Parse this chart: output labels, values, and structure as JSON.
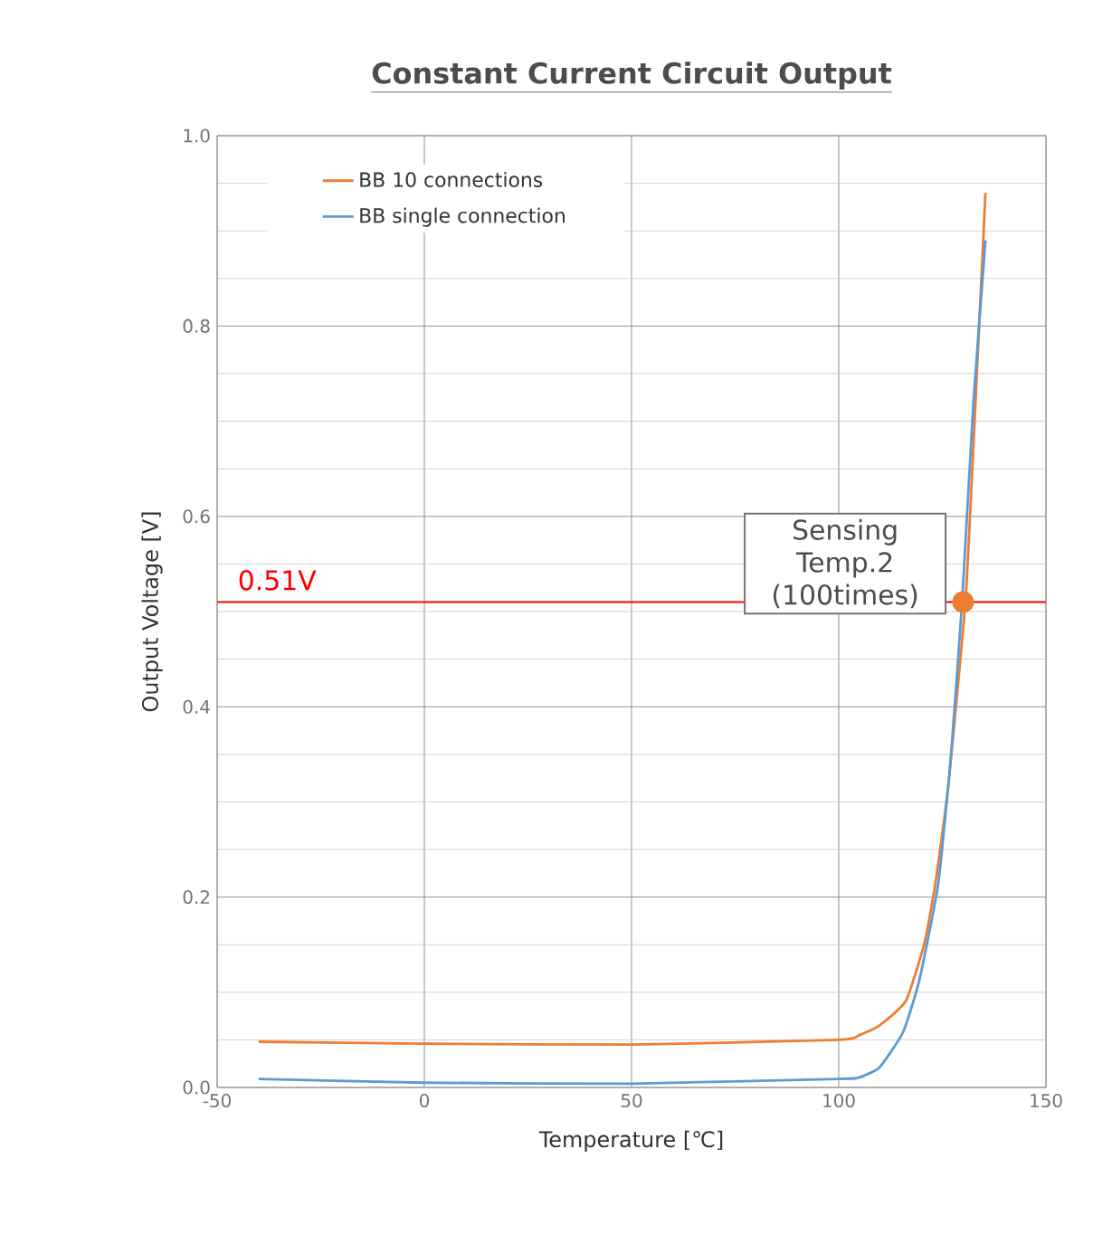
{
  "chart_data": {
    "type": "line",
    "title": "Constant Current Circuit Output",
    "xlabel": "Temperature [℃]",
    "ylabel": "Output Voltage [V]",
    "series": [
      {
        "name": "BB 10 connections",
        "color": "#ed7d31",
        "x": [
          -40,
          0,
          50,
          100,
          105,
          109.8,
          116.2,
          120.7,
          123.3,
          126.4,
          130.6,
          133,
          135.4
        ],
        "values": [
          0.048,
          0.046,
          0.045,
          0.05,
          0.055,
          0.065,
          0.091,
          0.152,
          0.214,
          0.316,
          0.513,
          0.72,
          0.94
        ]
      },
      {
        "name": "BB single connection",
        "color": "#5b9bd5",
        "x": [
          -40,
          0,
          50,
          100,
          104.6,
          109.8,
          115.5,
          119.4,
          124,
          127.1,
          129.8,
          132.5,
          135.4
        ],
        "values": [
          0.009,
          0.005,
          0.004,
          0.009,
          0.01,
          0.021,
          0.058,
          0.112,
          0.214,
          0.35,
          0.513,
          0.72,
          0.89
        ]
      }
    ],
    "xlim": [
      -50,
      150
    ],
    "xticks": [
      -50,
      0,
      50,
      100,
      150
    ],
    "ylim": [
      0,
      1
    ],
    "yticks": [
      {
        "value": 0,
        "label": "0.0"
      },
      {
        "value": 0.2,
        "label": "0.2"
      },
      {
        "value": 0.4,
        "label": "0.4"
      },
      {
        "value": 0.6,
        "label": "0.6"
      },
      {
        "value": 0.8,
        "label": "0.8"
      },
      {
        "value": 1,
        "label": "1.0"
      }
    ],
    "ref_lines": [
      {
        "axis": "y",
        "value": 0.51,
        "label": "0.51V",
        "color": "#ff0000"
      }
    ],
    "annotations": [
      {
        "text": "Sensing Temp.2 (100times)",
        "x": 130,
        "y": 0.51
      }
    ],
    "grid": true,
    "legend": "top left",
    "marker": "none",
    "line_style": "solid"
  }
}
